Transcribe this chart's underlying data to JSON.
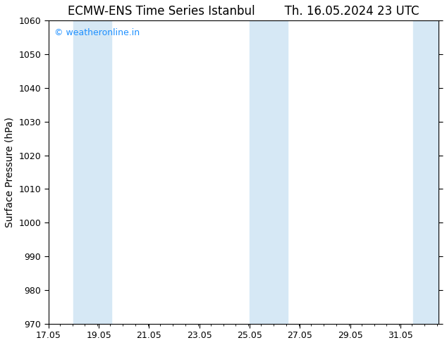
{
  "title": "ECMW-ENS Time Series Istanbul        Th. 16.05.2024 23 UTC",
  "ylabel": "Surface Pressure (hPa)",
  "ylim": [
    970,
    1060
  ],
  "yticks": [
    970,
    980,
    990,
    1000,
    1010,
    1020,
    1030,
    1040,
    1050,
    1060
  ],
  "xlim_start": 17.05,
  "xlim_end": 32.55,
  "xtick_labels": [
    "17.05",
    "19.05",
    "21.05",
    "23.05",
    "25.05",
    "27.05",
    "29.05",
    "31.05"
  ],
  "xtick_positions": [
    17.05,
    19.05,
    21.05,
    23.05,
    25.05,
    27.05,
    29.05,
    31.05
  ],
  "watermark": "© weatheronline.in",
  "watermark_color": "#1E90FF",
  "shaded_bands": [
    {
      "xmin": 18.05,
      "xmax": 19.55
    },
    {
      "xmin": 25.05,
      "xmax": 26.55
    },
    {
      "xmin": 31.55,
      "xmax": 32.55
    }
  ],
  "band_color": "#D6E8F5",
  "background_color": "#FFFFFF",
  "title_fontsize": 12,
  "tick_label_fontsize": 9,
  "ylabel_fontsize": 10
}
